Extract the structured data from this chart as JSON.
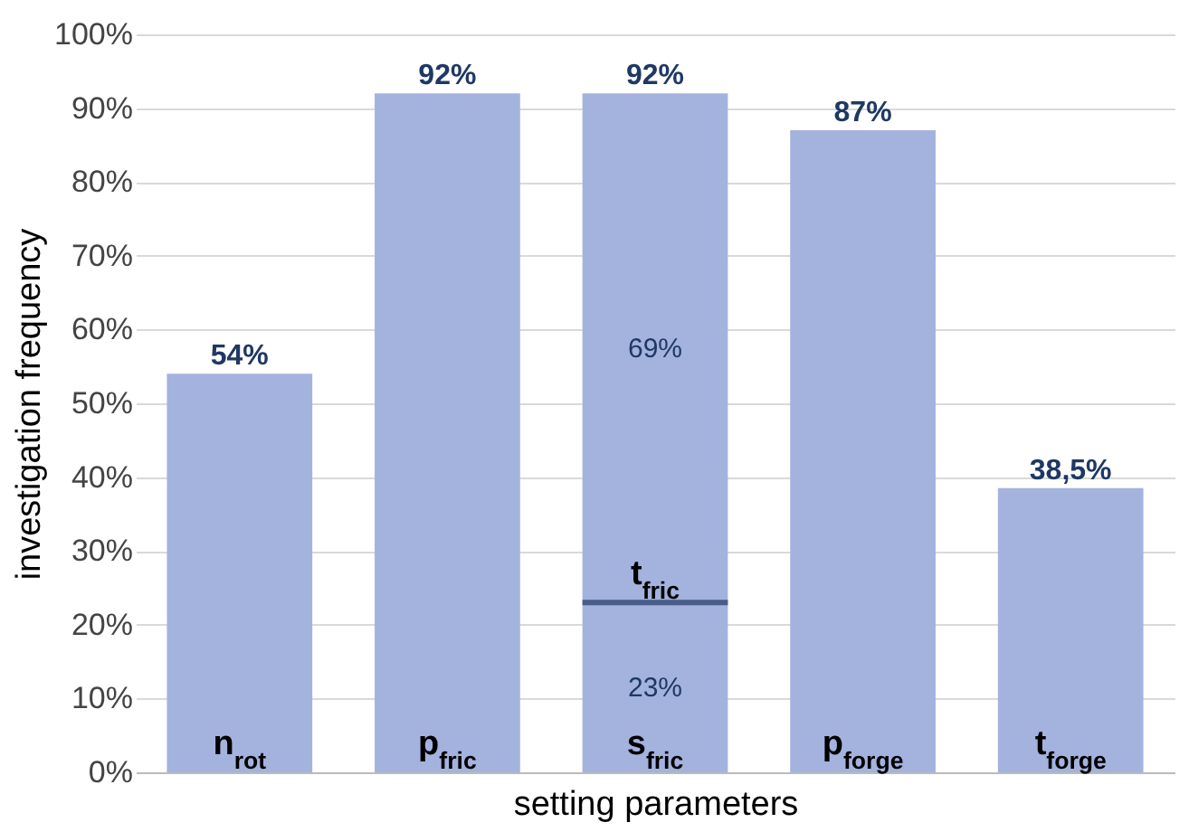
{
  "chart_data": {
    "type": "bar",
    "stacked": true,
    "xlabel": "setting parameters",
    "ylabel": "investigation frequency",
    "categories": [
      "n$_{rot}$",
      "p$_{fric}$",
      "s$_{fric}$",
      "p$_{forge}$",
      "t$_{forge}$"
    ],
    "series": [
      {
        "color": "#a4b2de",
        "values": [
          54,
          92,
          23,
          87,
          38.5
        ],
        "value_labels": [
          null,
          null,
          "23%",
          null,
          null
        ]
      },
      {
        "color": "#a4b2de",
        "values": [
          null,
          null,
          69,
          null,
          null
        ],
        "value_labels": [
          null,
          null,
          "69%",
          null,
          null
        ]
      }
    ],
    "totals": [
      "54%",
      "92%",
      "92%",
      "87%",
      "38,5%"
    ],
    "annotations": [
      {
        "text": "t$_{fric}$",
        "x": "s$_{fric}$",
        "y": 23
      }
    ],
    "ylim": [
      0,
      100
    ],
    "yticks": [
      {
        "value": 0,
        "label": "0%"
      },
      {
        "value": 10,
        "label": "10%"
      },
      {
        "value": 20,
        "label": "20%"
      },
      {
        "value": 30,
        "label": "30%"
      },
      {
        "value": 40,
        "label": "40%"
      },
      {
        "value": 50,
        "label": "50%"
      },
      {
        "value": 60,
        "label": "60%"
      },
      {
        "value": 70,
        "label": "70%"
      },
      {
        "value": 80,
        "label": "80%"
      },
      {
        "value": 90,
        "label": "90%"
      },
      {
        "value": 100,
        "label": "100%"
      }
    ],
    "grid": "y"
  }
}
